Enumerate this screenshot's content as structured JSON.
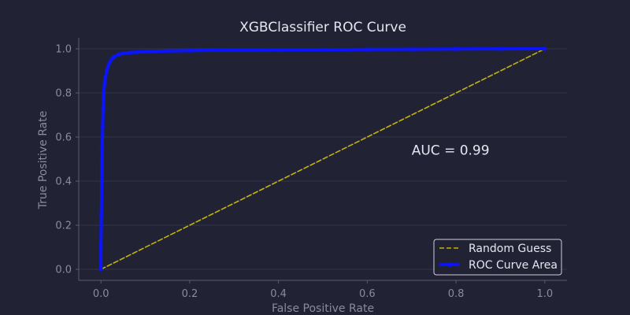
{
  "chart_data": {
    "type": "line",
    "title": "XGBClassifier ROC Curve",
    "xlabel": "False Positive Rate",
    "ylabel": "True Positive Rate",
    "xlim": [
      -0.05,
      1.05
    ],
    "ylim": [
      -0.05,
      1.05
    ],
    "xticks": [
      0.0,
      0.2,
      0.4,
      0.6,
      0.8,
      1.0
    ],
    "yticks": [
      0.0,
      0.2,
      0.4,
      0.6,
      0.8,
      1.0
    ],
    "xtick_labels": [
      "0.0",
      "0.2",
      "0.4",
      "0.6",
      "0.8",
      "1.0"
    ],
    "ytick_labels": [
      "0.0",
      "0.2",
      "0.4",
      "0.6",
      "0.8",
      "1.0"
    ],
    "grid": "horizontal",
    "legend_position": "bottom-right",
    "annotation": {
      "text": "AUC = 0.99",
      "x": 0.7,
      "y": 0.52
    },
    "series": [
      {
        "name": "Random Guess",
        "style": "dashed",
        "color": "#c8b400",
        "x": [
          0.0,
          1.0
        ],
        "y": [
          0.0,
          1.0
        ]
      },
      {
        "name": "ROC Curve Area",
        "style": "solid",
        "marker": "dot",
        "color": "#0a14ff",
        "x": [
          0.0,
          0.0,
          0.001,
          0.002,
          0.003,
          0.004,
          0.005,
          0.006,
          0.008,
          0.01,
          0.013,
          0.016,
          0.02,
          0.025,
          0.03,
          0.04,
          0.05,
          0.065,
          0.08,
          0.1,
          0.15,
          0.2,
          0.3,
          0.4,
          0.5,
          0.6,
          0.7,
          0.8,
          0.9,
          1.0
        ],
        "y": [
          0.0,
          0.1,
          0.25,
          0.4,
          0.55,
          0.65,
          0.73,
          0.79,
          0.84,
          0.87,
          0.9,
          0.92,
          0.94,
          0.955,
          0.965,
          0.975,
          0.98,
          0.983,
          0.985,
          0.987,
          0.99,
          0.992,
          0.994,
          0.995,
          0.996,
          0.997,
          0.998,
          0.999,
          0.9995,
          1.0
        ]
      }
    ]
  }
}
